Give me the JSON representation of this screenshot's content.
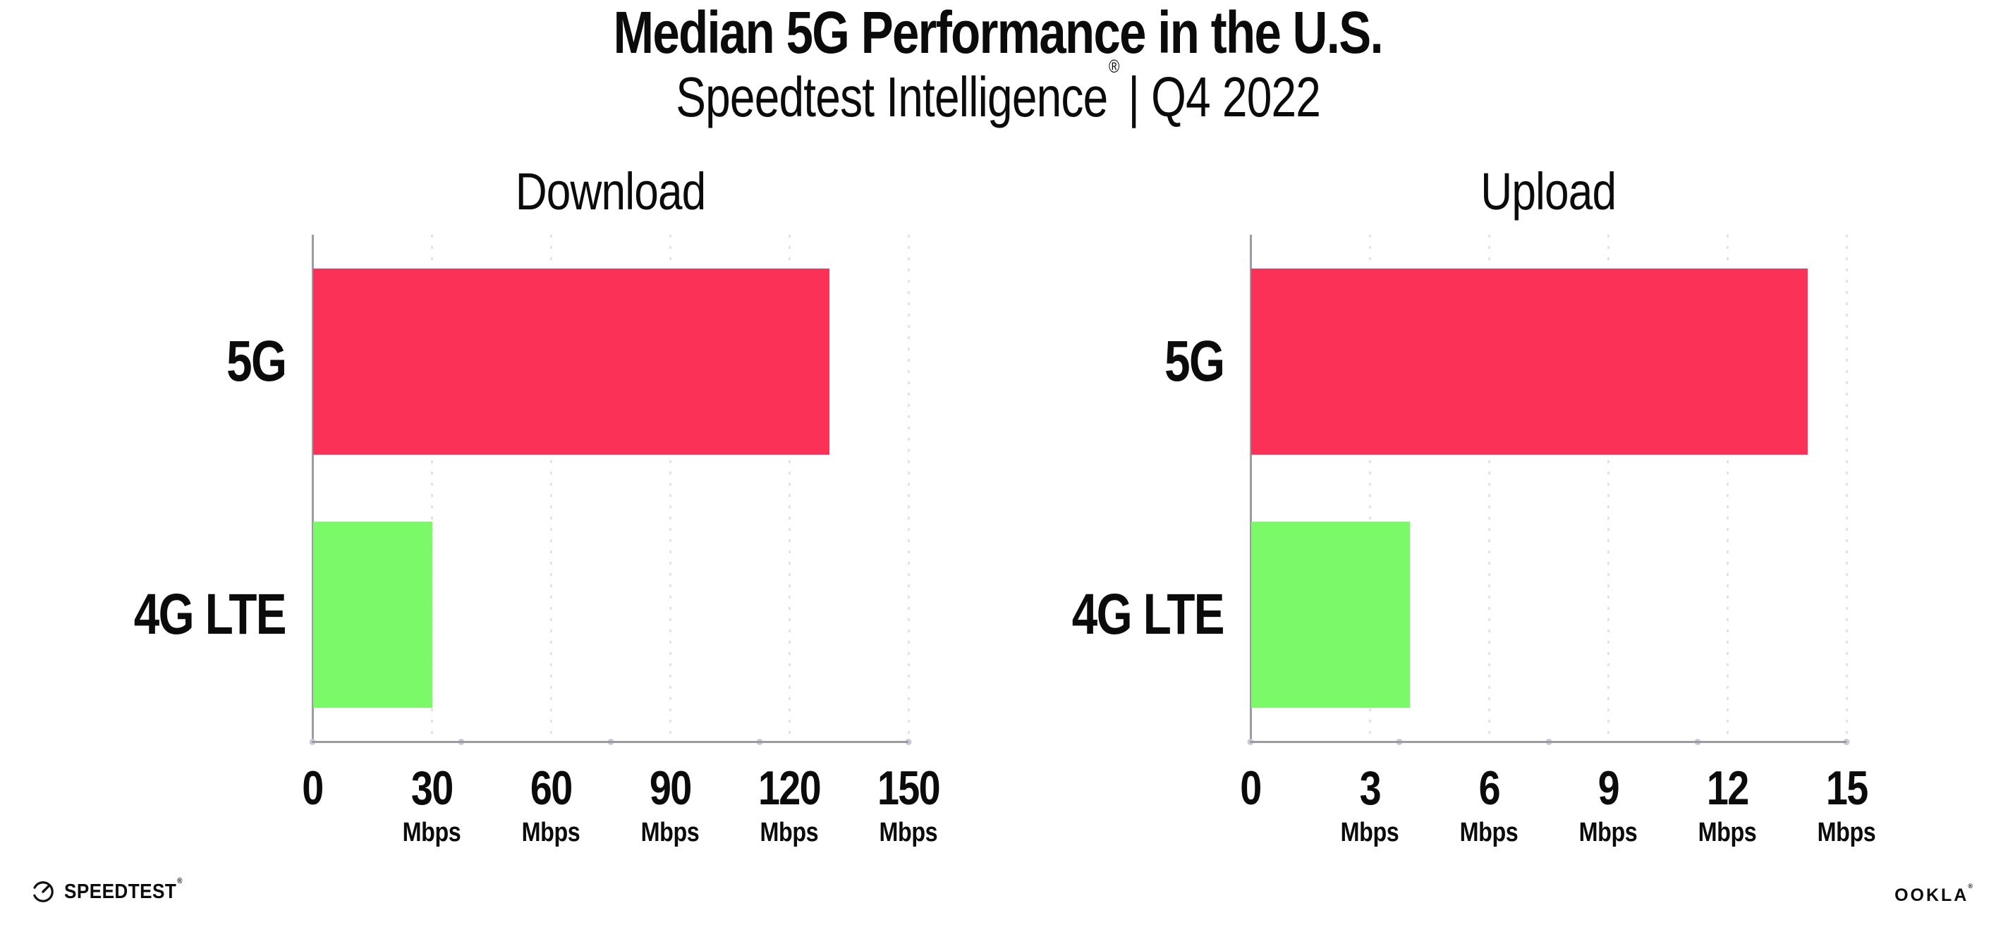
{
  "header": {
    "title": "Median 5G Performance in the U.S.",
    "subtitle_brand": "Speedtest Intelligence",
    "subtitle_reg": "®",
    "subtitle_rest": "| Q4 2022"
  },
  "footer": {
    "speedtest_label": "SPEEDTEST",
    "speedtest_reg": "®",
    "ookla_label": "OOKLA",
    "ookla_reg": "®"
  },
  "colors": {
    "bar_5g": "#FC3158",
    "bar_4g_lte": "#7CF969",
    "axis": "#9B9BA1",
    "gridline": "#E1E1EA",
    "text": "#0B0B0B"
  },
  "chart_data": [
    {
      "type": "bar",
      "orientation": "horizontal",
      "title": "Download",
      "categories": [
        "5G",
        "4G LTE"
      ],
      "values": [
        130,
        30
      ],
      "value_unit": "Mbps",
      "xlim": [
        0,
        150
      ],
      "xticks": [
        0,
        30,
        60,
        90,
        120,
        150
      ],
      "xtick_unit": "Mbps",
      "grid": "vertical dotted",
      "legend": "none",
      "bar_colors": [
        "#FC3158",
        "#7CF969"
      ]
    },
    {
      "type": "bar",
      "orientation": "horizontal",
      "title": "Upload",
      "categories": [
        "5G",
        "4G LTE"
      ],
      "values": [
        14,
        4
      ],
      "value_unit": "Mbps",
      "xlim": [
        0,
        15
      ],
      "xticks": [
        0,
        3,
        6,
        9,
        12,
        15
      ],
      "xtick_unit": "Mbps",
      "grid": "vertical dotted",
      "legend": "none",
      "bar_colors": [
        "#FC3158",
        "#7CF969"
      ]
    }
  ]
}
